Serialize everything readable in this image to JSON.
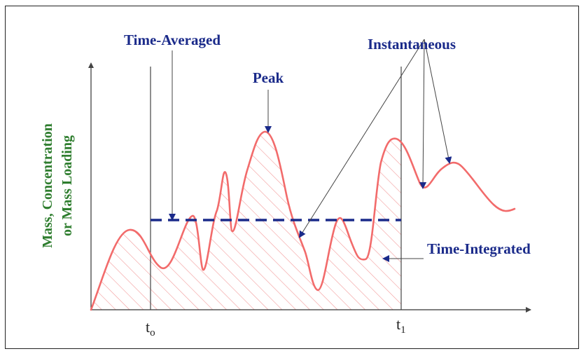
{
  "diagram": {
    "y_axis_label_line1": "Mass, Concentration",
    "y_axis_label_line2": "or Mass Loading",
    "label_time_averaged": "Time-Averaged",
    "label_peak": "Peak",
    "label_instantaneous": "Instantaneous",
    "label_time_integrated": "Time-Integrated",
    "tick_t0_base": "t",
    "tick_t0_sub": "o",
    "tick_t1_base": "t",
    "tick_t1_sub": "1"
  },
  "colors": {
    "curve": "#f26b6b",
    "hatch": "#f29a9a",
    "average_line": "#1a2a8a",
    "annotation_text": "#1a2a8a",
    "axis_label": "#2e7d2e",
    "axes": "#333333"
  }
}
